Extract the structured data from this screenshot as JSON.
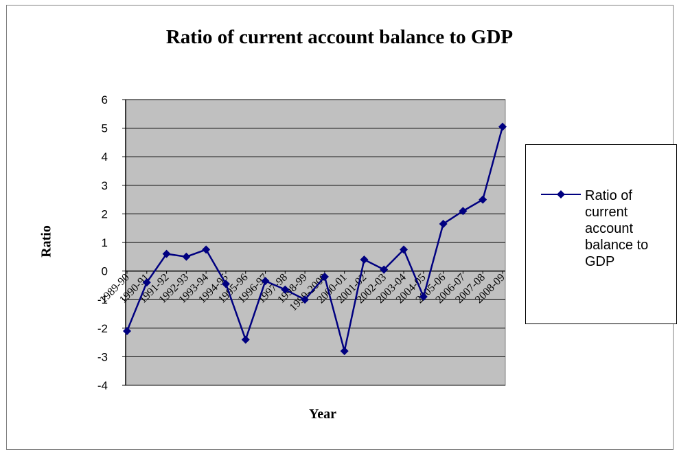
{
  "chart_data": {
    "type": "line",
    "title": "Ratio of current account balance to GDP",
    "xlabel": "Year",
    "ylabel": "Ratio",
    "categories": [
      "1989-90",
      "1990-91",
      "1991-92",
      "1992-93",
      "1993-94",
      "1994-95",
      "1995-96",
      "1996-97",
      "1997-98",
      "1998-99",
      "1999-2000",
      "2000-01",
      "2001-02",
      "2002-03",
      "2003-04",
      "2004-05",
      "2005-06",
      "2006-07",
      "2007-08",
      "2008-09"
    ],
    "series": [
      {
        "name": "Ratio of current account balance to GDP",
        "color": "#000080",
        "marker": "diamond",
        "values": [
          -2.1,
          -0.4,
          0.6,
          0.5,
          0.75,
          -0.45,
          -2.4,
          -0.35,
          -0.65,
          -1.0,
          -0.2,
          -2.8,
          0.4,
          0.05,
          0.75,
          -0.9,
          1.65,
          2.1,
          2.5,
          5.05
        ]
      }
    ],
    "ylim": [
      -4,
      6
    ],
    "yticks": [
      "-4",
      "-3",
      "-2",
      "-1",
      "0",
      "1",
      "2",
      "3",
      "4",
      "5",
      "6"
    ],
    "grid": true,
    "plot_background": "#c0c0c0",
    "legend_position": "right"
  }
}
